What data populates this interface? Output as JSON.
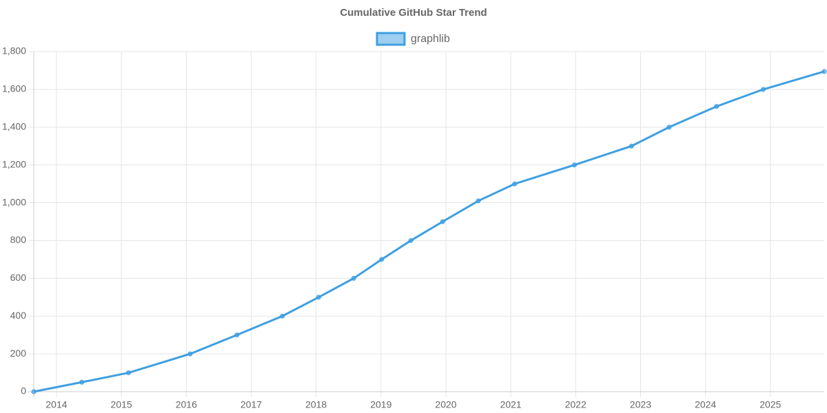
{
  "chart_data": {
    "type": "line",
    "title": "Cumulative GitHub Star Trend",
    "x": [
      2013.65,
      2014.39,
      2015.11,
      2016.06,
      2016.78,
      2017.48,
      2018.04,
      2018.58,
      2019.01,
      2019.46,
      2019.95,
      2020.5,
      2021.06,
      2021.98,
      2022.86,
      2023.44,
      2024.17,
      2024.89,
      2025.83
    ],
    "series": [
      {
        "name": "graphlib",
        "color": "#3e9fe1",
        "values": [
          0,
          50,
          100,
          200,
          300,
          400,
          500,
          600,
          700,
          800,
          900,
          1010,
          1100,
          1200,
          1300,
          1400,
          1510,
          1600,
          1695
        ]
      }
    ],
    "xlim": [
      2013.65,
      2025.83
    ],
    "xticks": [
      2014,
      2015,
      2016,
      2017,
      2018,
      2019,
      2020,
      2021,
      2022,
      2023,
      2024,
      2025
    ],
    "ylim": [
      0,
      1800
    ],
    "yticks": [
      0,
      200,
      400,
      600,
      800,
      {
        "value": 1000,
        "label": "1,000"
      },
      {
        "value": 1200,
        "label": "1,200"
      },
      {
        "value": 1400,
        "label": "1,400"
      },
      {
        "value": 1600,
        "label": "1,600"
      },
      {
        "value": 1800,
        "label": "1,800"
      }
    ],
    "grid": true,
    "legend": "top"
  }
}
